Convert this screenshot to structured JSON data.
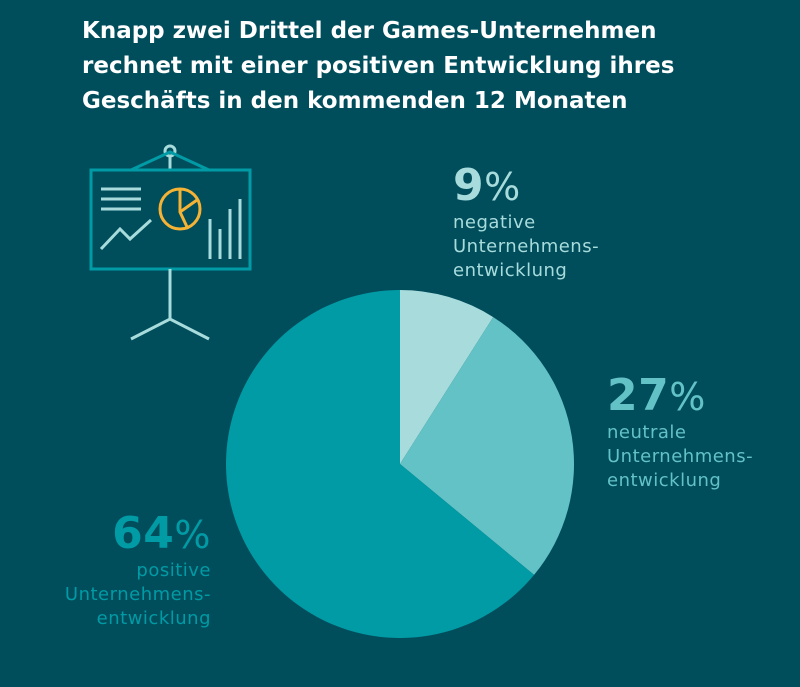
{
  "title": "Knapp zwei Drittel der Games-Unternehmen rechnet mit einer positiven Entwicklung ihres Geschäfts in den kommenden 12 Monaten",
  "colors": {
    "background": "#004d5c",
    "negative": "#a8dcdc",
    "neutral": "#62c2c6",
    "positive": "#009ba5",
    "icon_accent": "#f5b335"
  },
  "chart_data": {
    "type": "pie",
    "title": "Knapp zwei Drittel der Games-Unternehmen rechnet mit einer positiven Entwicklung ihres Geschäfts in den kommenden 12 Monaten",
    "slices": [
      {
        "label": "negative Unternehmensentwicklung",
        "value": 9,
        "display": "9",
        "line1": "negative",
        "line2": "Unternehmens-",
        "line3": "entwicklung",
        "color": "#a8dcdc"
      },
      {
        "label": "neutrale Unternehmensentwicklung",
        "value": 27,
        "display": "27",
        "line1": "neutrale",
        "line2": "Unternehmens-",
        "line3": "entwicklung",
        "color": "#62c2c6"
      },
      {
        "label": "positive Unternehmensentwicklung",
        "value": 64,
        "display": "64",
        "line1": "positive",
        "line2": "Unternehmens-",
        "line3": "entwicklung",
        "color": "#009ba5"
      }
    ],
    "unit": "%"
  }
}
